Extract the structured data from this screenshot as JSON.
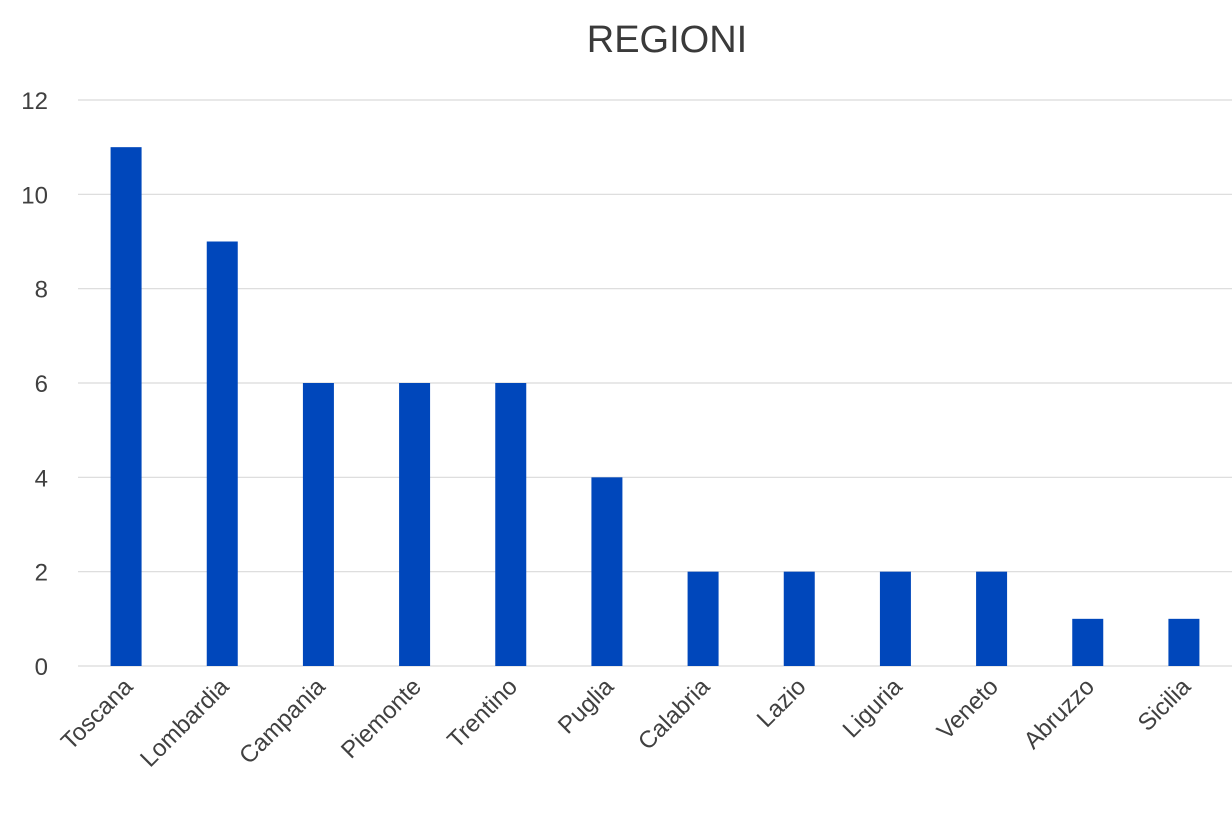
{
  "chart_data": {
    "type": "bar",
    "title": "REGIONI",
    "xlabel": "",
    "ylabel": "",
    "categories": [
      "Toscana",
      "Lombardia",
      "Campania",
      "Piemonte",
      "Trentino",
      "Puglia",
      "Calabria",
      "Lazio",
      "Liguria",
      "Veneto",
      "Abruzzo",
      "Sicilia"
    ],
    "values": [
      11,
      9,
      6,
      6,
      6,
      4,
      2,
      2,
      2,
      2,
      1,
      1
    ],
    "ylim": [
      0,
      12
    ],
    "yticks": [
      "0",
      "2",
      "4",
      "6",
      "8",
      "10",
      "12"
    ],
    "grid": true,
    "legend": "none",
    "bar_color": "#0047BB"
  }
}
